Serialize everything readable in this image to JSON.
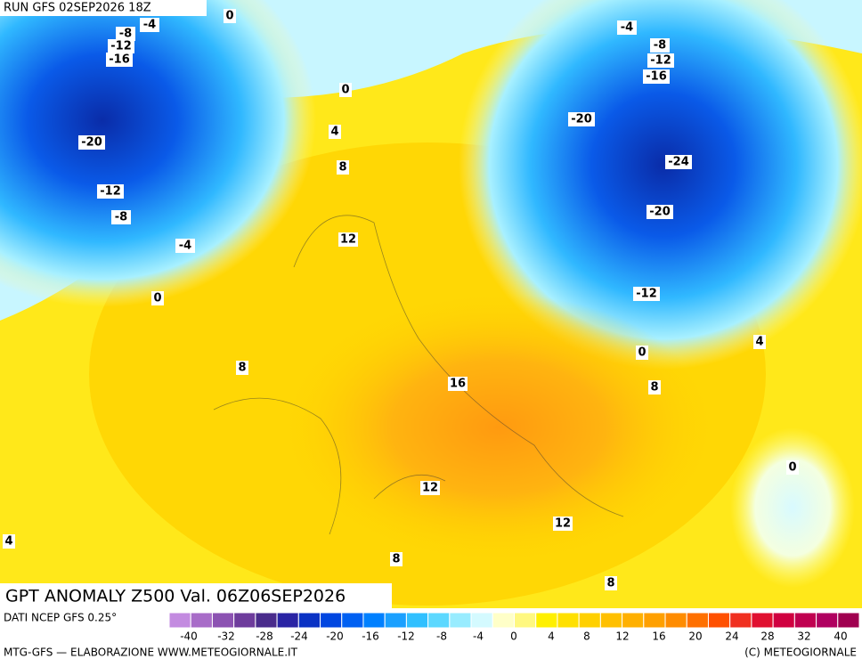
{
  "header": {
    "title": "RUN GFS 02SEP2026 18Z"
  },
  "map": {
    "title": "GPT ANOMALY Z500 Val. 06Z06SEP2026",
    "contour_labels": [
      "-4",
      "0",
      "-8",
      "-12",
      "-16",
      "-20",
      "-12",
      "-8",
      "-4",
      "0",
      "0",
      "4",
      "8",
      "12",
      "8",
      "16",
      "12",
      "12",
      "8",
      "8",
      "4",
      "-4",
      "-8",
      "-12",
      "-16",
      "-20",
      "-24",
      "-20",
      "-12",
      "0",
      "4",
      "8",
      "0"
    ]
  },
  "legend": {
    "colors": [
      "#c38be0",
      "#a86cc8",
      "#8c52b2",
      "#6e3c9c",
      "#4a2c8c",
      "#2a24a4",
      "#0a32c4",
      "#0046e0",
      "#0060f2",
      "#0080ff",
      "#1aa0ff",
      "#30c0ff",
      "#5cd8ff",
      "#98ecff",
      "#d4faff",
      "#ffffc8",
      "#fff880",
      "#fff000",
      "#ffe000",
      "#ffd000",
      "#ffc000",
      "#ffb000",
      "#ffa000",
      "#ff8c00",
      "#ff7000",
      "#ff5000",
      "#f03020",
      "#e01030",
      "#d00040",
      "#c00050",
      "#b00060",
      "#a00050"
    ],
    "labels": [
      "-40",
      "-32",
      "-28",
      "-24",
      "-20",
      "-16",
      "-12",
      "-8",
      "-4",
      "0",
      "4",
      "8",
      "12",
      "16",
      "20",
      "24",
      "28",
      "32",
      "40"
    ]
  },
  "footer": {
    "source": "DATI NCEP GFS 0.25°",
    "credit": "MTG-GFS — ELABORAZIONE WWW.METEOGIORNALE.IT",
    "copyright": "(C) METEOGIORNALE"
  }
}
